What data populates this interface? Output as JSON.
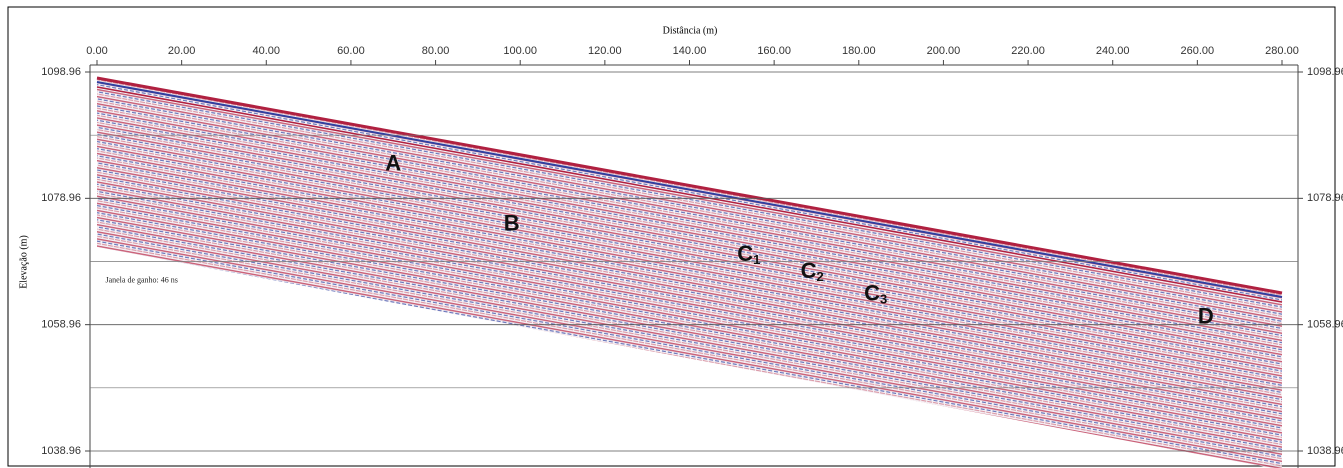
{
  "chart_data": {
    "type": "radargram",
    "x_label": "Distância (m)",
    "y_label": "Elevação (m)",
    "xlim": [
      0,
      280
    ],
    "xticks": [
      {
        "value": 0,
        "label": "0.00"
      },
      {
        "value": 20,
        "label": "20.00"
      },
      {
        "value": 40,
        "label": "40.00"
      },
      {
        "value": 60,
        "label": "60.00"
      },
      {
        "value": 80,
        "label": "80.00"
      },
      {
        "value": 100,
        "label": "100.00"
      },
      {
        "value": 120,
        "label": "120.00"
      },
      {
        "value": 140,
        "label": "140.00"
      },
      {
        "value": 160,
        "label": "160.00"
      },
      {
        "value": 180,
        "label": "180.00"
      },
      {
        "value": 200,
        "label": "200.00"
      },
      {
        "value": 220,
        "label": "220.00"
      },
      {
        "value": 240,
        "label": "240.00"
      },
      {
        "value": 260,
        "label": "260.00"
      },
      {
        "value": 280,
        "label": "280.00"
      }
    ],
    "ylim": [
      1038.96,
      1098.96
    ],
    "yticks": [
      1038.96,
      1058.96,
      1078.96,
      1098.96
    ],
    "minor_grid": [
      1048.96,
      1068.96,
      1088.96
    ],
    "grid": true,
    "annotations": [
      {
        "text": "A",
        "x": 70,
        "y": 1084.3
      },
      {
        "text": "B",
        "x": 98,
        "y": 1074.8
      },
      {
        "text": "C",
        "sub": "1",
        "x": 154,
        "y": 1070
      },
      {
        "text": "C",
        "sub": "2",
        "x": 169,
        "y": 1067.3
      },
      {
        "text": "C",
        "sub": "3",
        "x": 184,
        "y": 1063.7
      },
      {
        "text": "D",
        "x": 262,
        "y": 1060.1
      }
    ],
    "note": {
      "text": "Janela de ganho: 46 ns",
      "x": 2,
      "y": 1065.9
    }
  }
}
